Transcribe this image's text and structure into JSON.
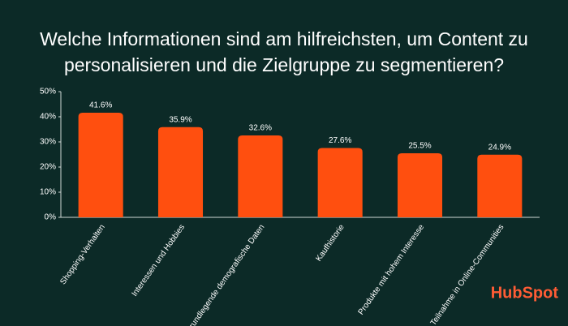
{
  "chart_data": {
    "type": "bar",
    "title": [
      "Welche Informationen sind am hilfreichsten, um Content zu",
      "personalisieren und die Zielgruppe zu segmentieren?"
    ],
    "categories": [
      "Shopping-Verhalten",
      "Interessen und Hobbies",
      "Grundlegende demografische Daten",
      "Kaufhistorie",
      "Produkte mit hohem Interesse",
      "Teilnahme in Online-Communities"
    ],
    "values": [
      41.6,
      35.9,
      32.6,
      27.6,
      25.5,
      24.9
    ],
    "value_labels": [
      "41.6%",
      "35.9%",
      "32.6%",
      "27.6%",
      "25.5%",
      "24.9%"
    ],
    "color": "#ff4f0f",
    "ylim": [
      0,
      50
    ],
    "yticks": [
      {
        "value": 0,
        "label": "0%"
      },
      {
        "value": 10,
        "label": "10%"
      },
      {
        "value": 20,
        "label": "20%"
      },
      {
        "value": 30,
        "label": "30%"
      },
      {
        "value": 40,
        "label": "40%"
      },
      {
        "value": 50,
        "label": "50%"
      }
    ],
    "grid": false,
    "logo": "HubSpot"
  }
}
